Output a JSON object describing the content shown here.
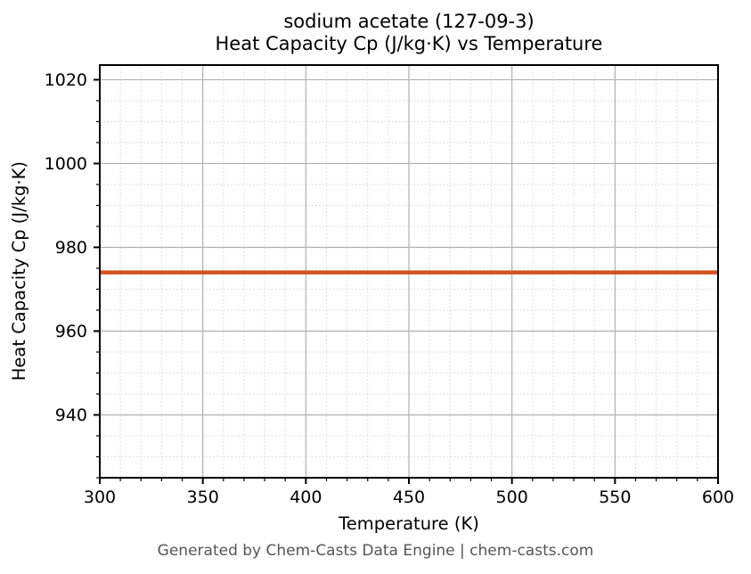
{
  "chart_data": {
    "type": "line",
    "title_lines": [
      "sodium acetate (127-09-3)",
      "Heat Capacity Cp (J/kg·K) vs Temperature"
    ],
    "xlabel": "Temperature (K)",
    "ylabel": "Heat Capacity Cp (J/kg·K)",
    "x": [
      300,
      350,
      400,
      450,
      500,
      550,
      600
    ],
    "series": [
      {
        "name": "Heat Capacity Cp",
        "values": [
          974,
          974,
          974,
          974,
          974,
          974,
          974
        ]
      }
    ],
    "xlim": [
      300,
      600
    ],
    "ylim": [
      925,
      1023.5
    ],
    "xticks": [
      300,
      350,
      400,
      450,
      500,
      550,
      600
    ],
    "yticks": [
      940,
      960,
      980,
      1000,
      1020
    ],
    "minor_x_step": 10,
    "minor_y_step": 5,
    "grid": true,
    "legend": false,
    "line_width": 4.5,
    "colors": {
      "line": "#d2521e",
      "major_grid": "#b0b0b0",
      "minor_grid": "#d8d8d8",
      "spine": "#000000",
      "tick_label": "#000000"
    }
  },
  "footer": {
    "text": "Generated by Chem-Casts Data Engine | chem-casts.com",
    "color": "#555555"
  }
}
